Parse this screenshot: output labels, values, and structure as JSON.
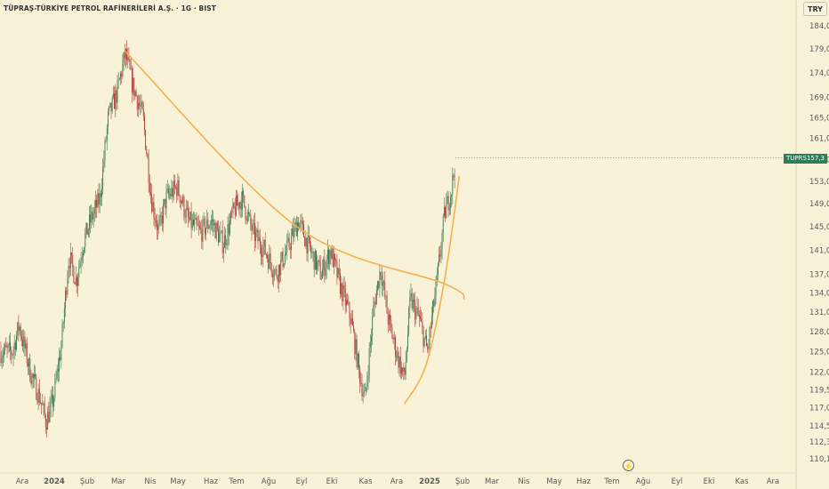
{
  "title": "TÜPRAŞ-TÜRKİYE PETROL RAFİNERİLERİ A.Ş. · 1G · BIST",
  "currency": "TRY",
  "ticker": {
    "symbol": "TUPRS",
    "price": "157,3"
  },
  "colors": {
    "background": "#f8f2d8",
    "up": "#3f7f55",
    "down": "#b03a3a",
    "trendline": "#f6b04f",
    "badge": "#2f7d5b"
  },
  "icons": {
    "event_marker": "lightning-icon"
  },
  "chart_data": {
    "type": "candlestick",
    "xlabels": [
      "Ara",
      "2024",
      "Şub",
      "Mar",
      "Nis",
      "May",
      "Haz",
      "Tem",
      "Ağu",
      "Eyl",
      "Eki",
      "Kas",
      "Ara",
      "2025",
      "Şub",
      "Mar",
      "Nis",
      "May",
      "Haz",
      "Tem",
      "Ağu",
      "Eyl",
      "Eki",
      "Kas",
      "Ara"
    ],
    "ytick_labels": [
      "184,0",
      "179,0",
      "174,0",
      "169,0",
      "165,0",
      "161,0",
      "157,0",
      "153,0",
      "149,0",
      "145,0",
      "141,0",
      "137,0",
      "134,0",
      "131,0",
      "128,0",
      "125,0",
      "122,0",
      "119,5",
      "117,0",
      "114,5",
      "112,3",
      "110,1"
    ],
    "ytick_values": [
      184.0,
      179.0,
      174.0,
      169.0,
      165.0,
      161.0,
      157.0,
      153.0,
      149.0,
      145.0,
      141.0,
      137.0,
      134.0,
      131.0,
      128.0,
      125.0,
      122.0,
      119.5,
      117.0,
      114.5,
      112.3,
      110.1
    ],
    "yscale": "log",
    "ylim": [
      109,
      188
    ],
    "price_path": [
      [
        "2023-12-01",
        125.0
      ],
      [
        "2023-12-10",
        129.0
      ],
      [
        "2023-12-25",
        122.0
      ],
      [
        "2024-01-08",
        118.0
      ],
      [
        "2024-01-15",
        115.0
      ],
      [
        "2024-01-25",
        118.0
      ],
      [
        "2024-02-05",
        126.0
      ],
      [
        "2024-02-15",
        140.0
      ],
      [
        "2024-02-25",
        136.0
      ],
      [
        "2024-03-05",
        142.0
      ],
      [
        "2024-03-15",
        146.0
      ],
      [
        "2024-03-28",
        150.0
      ],
      [
        "2024-04-08",
        165.0
      ],
      [
        "2024-04-20",
        170.0
      ],
      [
        "2024-05-01",
        178.0
      ],
      [
        "2024-05-10",
        172.0
      ],
      [
        "2024-05-25",
        165.0
      ],
      [
        "2024-06-05",
        150.0
      ],
      [
        "2024-06-15",
        144.0
      ],
      [
        "2024-06-25",
        150.0
      ],
      [
        "2024-07-10",
        152.0
      ],
      [
        "2024-07-25",
        146.0
      ],
      [
        "2024-08-10",
        144.0
      ],
      [
        "2024-08-25",
        146.0
      ],
      [
        "2024-09-10",
        142.0
      ],
      [
        "2024-09-25",
        148.0
      ],
      [
        "2024-10-05",
        150.0
      ],
      [
        "2024-10-20",
        144.0
      ],
      [
        "2024-11-05",
        141.0
      ],
      [
        "2024-11-20",
        137.0
      ],
      [
        "2024-12-05",
        141.0
      ],
      [
        "2024-12-20",
        146.0
      ],
      [
        "2025-01-05",
        141.0
      ],
      [
        "2025-01-20",
        137.0
      ],
      [
        "2025-02-01",
        141.0
      ],
      [
        "2025-02-15",
        135.0
      ],
      [
        "2025-03-01",
        130.0
      ],
      [
        "2025-03-12",
        122.0
      ],
      [
        "2025-03-20",
        118.0
      ],
      [
        "2025-04-01",
        132.0
      ],
      [
        "2025-04-10",
        138.0
      ],
      [
        "2025-04-20",
        130.0
      ],
      [
        "2025-05-01",
        125.0
      ],
      [
        "2025-05-12",
        121.0
      ],
      [
        "2025-05-20",
        133.0
      ],
      [
        "2025-06-01",
        130.0
      ],
      [
        "2025-06-12",
        125.0
      ],
      [
        "2025-06-25",
        136.0
      ],
      [
        "2025-07-05",
        147.0
      ],
      [
        "2025-07-15",
        152.0
      ],
      [
        "2025-07-20",
        157.0
      ]
    ],
    "trendlines": [
      {
        "type": "curve",
        "points": [
          [
            "2024-05-01",
            178.5
          ],
          [
            "2024-12-18",
            145.0
          ],
          [
            "2025-07-05",
            135.5
          ],
          [
            "2025-08-01",
            133.0
          ]
        ]
      },
      {
        "type": "curve",
        "points": [
          [
            "2025-05-12",
            117.5
          ],
          [
            "2025-06-10",
            123.0
          ],
          [
            "2025-07-05",
            136.0
          ],
          [
            "2025-07-25",
            154.0
          ]
        ]
      }
    ],
    "last_price": 157.3,
    "grid": false
  }
}
